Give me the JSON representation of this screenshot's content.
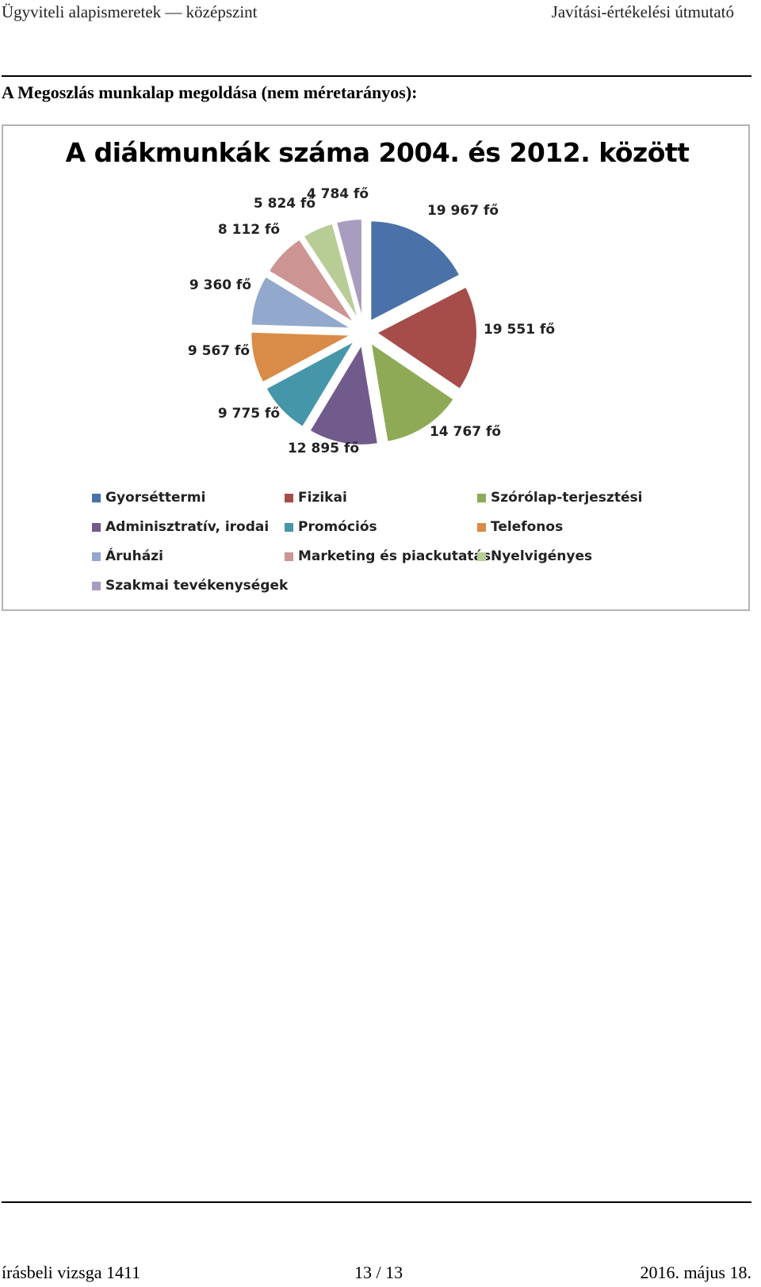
{
  "header": {
    "left": "Ügyviteli alapismeretek — középszint",
    "right": "Javítási-értékelési útmutató"
  },
  "section_title": "A Megoszlás munkalap megoldása (nem méretarányos):",
  "colors": {
    "Gyorséttermi": "#4a72a8",
    "Fizikai": "#a64d4a",
    "Szórólap-terjesztési": "#8faa56",
    "Adminisztratív, irodai": "#715a8c",
    "Promóciós": "#4596a9",
    "Telefonos": "#d98c47",
    "Áruházi": "#92a8cc",
    "Marketing és piackutatás": "#cc9593",
    "Nyelvigényes": "#b7cd95",
    "Szakmai tevékenységek": "#a89dbf"
  },
  "chart_data": {
    "type": "pie",
    "title": "A diákmunkák száma 2004. és 2012. között",
    "categories": [
      "Gyorséttermi",
      "Fizikai",
      "Szórólap-terjesztési",
      "Adminisztratív, irodai",
      "Promóciós",
      "Telefonos",
      "Áruházi",
      "Marketing és piackutatás",
      "Nyelvigényes",
      "Szakmai tevékenységek"
    ],
    "values": [
      19967,
      19551,
      14767,
      12895,
      9775,
      9567,
      9360,
      8112,
      5824,
      4784
    ],
    "data_labels": [
      "19 967 fő",
      "19 551 fő",
      "14 767 fő",
      "12 895 fő",
      "9 775 fő",
      "9 567 fő",
      "9 360 fő",
      "8 112 fő",
      "5 824 fő",
      "4 784 fő"
    ],
    "exploded": true,
    "legend_position": "bottom"
  },
  "footer": {
    "left": "írásbeli vizsga 1411",
    "center": "13 / 13",
    "right": "2016. május 18."
  }
}
